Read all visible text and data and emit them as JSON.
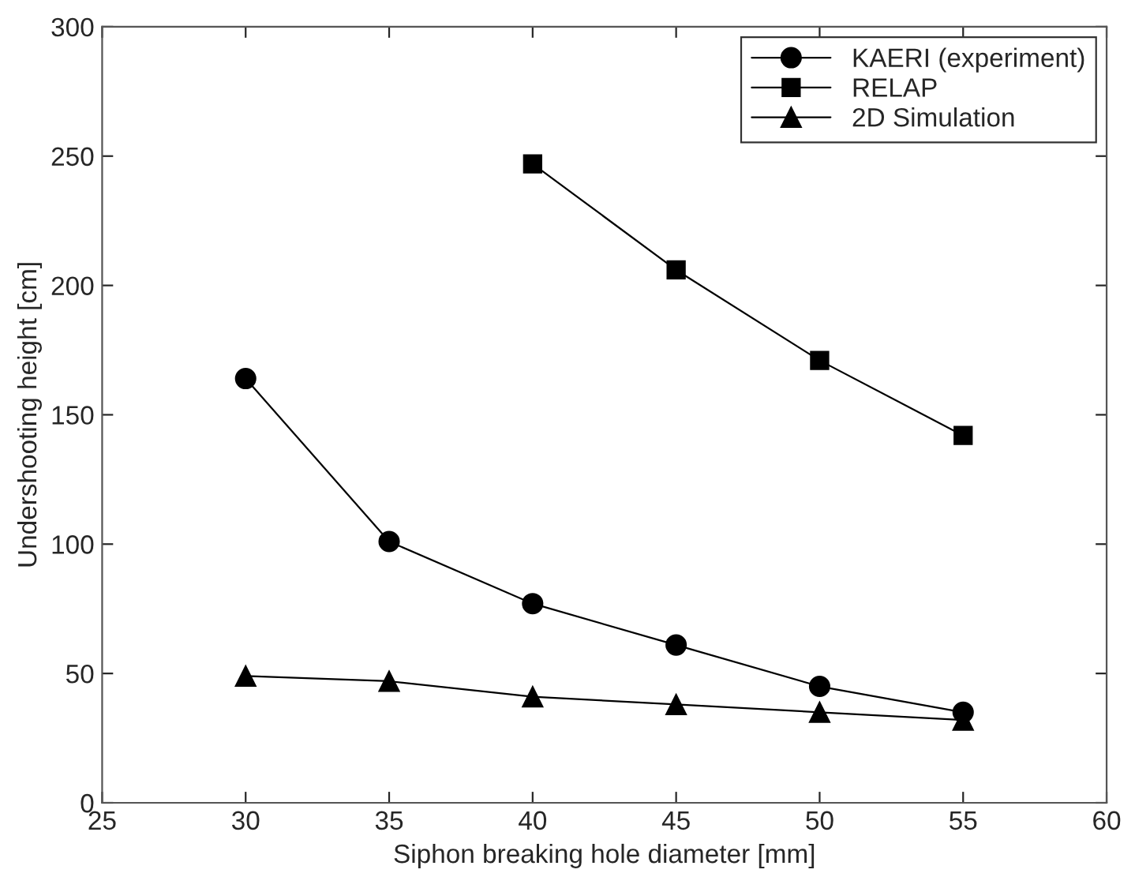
{
  "chart_data": {
    "type": "line",
    "xlabel": "Siphon breaking hole diameter [mm]",
    "ylabel": "Undershooting height [cm]",
    "xlim": [
      25,
      60
    ],
    "xticks": [
      25,
      30,
      35,
      40,
      45,
      50,
      55,
      60
    ],
    "ylim": [
      0,
      300
    ],
    "yticks": [
      0,
      50,
      100,
      150,
      200,
      250,
      300
    ],
    "grid": false,
    "legend": "top right",
    "line_style": "solid",
    "series": [
      {
        "name": "KAERI (experiment)",
        "color": "#000000",
        "marker": "circle",
        "x": [
          30,
          35,
          40,
          45,
          50,
          55
        ],
        "values": [
          164,
          101,
          77,
          61,
          45,
          35
        ]
      },
      {
        "name": "RELAP",
        "color": "#000000",
        "marker": "square",
        "x": [
          40,
          45,
          50,
          55
        ],
        "values": [
          247,
          206,
          171,
          142
        ]
      },
      {
        "name": "2D Simulation",
        "color": "#000000",
        "marker": "triangle",
        "x": [
          30,
          35,
          40,
          45,
          50,
          55
        ],
        "values": [
          49,
          47,
          41,
          38,
          35,
          32
        ]
      }
    ]
  }
}
